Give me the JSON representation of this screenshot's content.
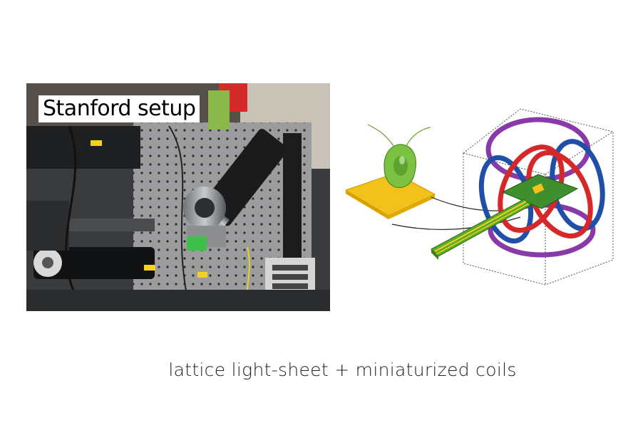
{
  "photo": {
    "label": "Stanford setup"
  },
  "caption": "lattice light-sheet + miniaturized coils",
  "colors": {
    "coil_purple": "#8a3aa8",
    "coil_red": "#d62828",
    "coil_blue": "#1f4fa8",
    "chip_green": "#3f8f2f",
    "stage_yellow": "#f2c11c",
    "cell_green": "#7cc242"
  }
}
